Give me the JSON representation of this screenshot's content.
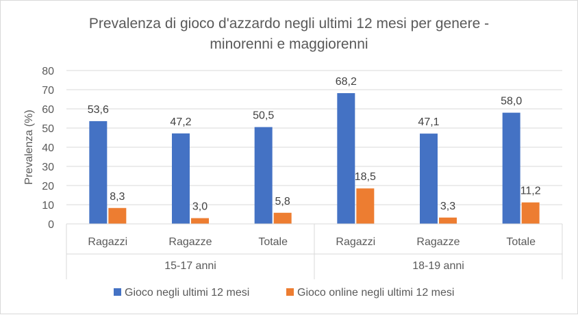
{
  "chart_data": {
    "type": "bar",
    "title_lines": [
      "Prevalenza di gioco d'azzardo negli ultimi 12 mesi per genere -",
      "minorenni e maggiorenni"
    ],
    "ylabel": "Prevalenza (%)",
    "xlabel": "",
    "ylim": [
      0,
      80
    ],
    "yticks": [
      0,
      10,
      20,
      30,
      40,
      50,
      60,
      70,
      80
    ],
    "grid": true,
    "legend_position": "bottom",
    "groups": [
      {
        "label": "15-17 anni",
        "categories": [
          "Ragazzi",
          "Ragazze",
          "Totale"
        ]
      },
      {
        "label": "18-19 anni",
        "categories": [
          "Ragazzi",
          "Ragazze",
          "Totale"
        ]
      }
    ],
    "series": [
      {
        "name": "Gioco negli ultimi 12 mesi",
        "color": "#4472C4",
        "values": [
          53.6,
          47.2,
          50.5,
          68.2,
          47.1,
          58.0
        ],
        "labels": [
          "53,6",
          "47,2",
          "50,5",
          "68,2",
          "47,1",
          "58,0"
        ]
      },
      {
        "name": "Gioco online negli ultimi 12 mesi",
        "color": "#ED7D31",
        "values": [
          8.3,
          3.0,
          5.8,
          18.5,
          3.3,
          11.2
        ],
        "labels": [
          "8,3",
          "3,0",
          "5,8",
          "18,5",
          "3,3",
          "11,2"
        ]
      }
    ]
  }
}
